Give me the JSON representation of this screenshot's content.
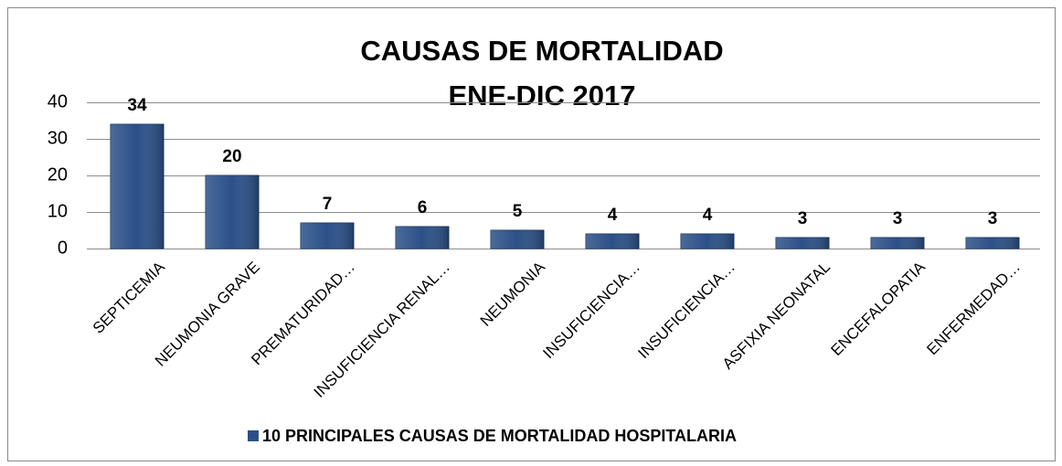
{
  "chart_data": {
    "type": "bar",
    "title": [
      "CAUSAS DE MORTALIDAD",
      "ENE-DIC 2017"
    ],
    "categories": [
      "SEPTICEMIA",
      "NEUMONIA GRAVE",
      "PREMATURIDAD…",
      "INSUFICIENCIA RENAL…",
      "NEUMONIA",
      "INSUFICIENCIA…",
      "INSUFICIENCIA…",
      "ASFIXIA NEONATAL",
      "ENCEFALOPATIA",
      "ENFERMEDAD…"
    ],
    "series": [
      {
        "name": "10 PRINCIPALES CAUSAS DE MORTALIDAD HOSPITALARIA",
        "color": "#2b5088",
        "values": [
          34,
          20,
          7,
          6,
          5,
          4,
          4,
          3,
          3,
          3
        ]
      }
    ],
    "ylim": [
      0,
      40
    ],
    "yticks": [
      0,
      10,
      20,
      30,
      40
    ],
    "grid": true,
    "legend": "bottom"
  }
}
